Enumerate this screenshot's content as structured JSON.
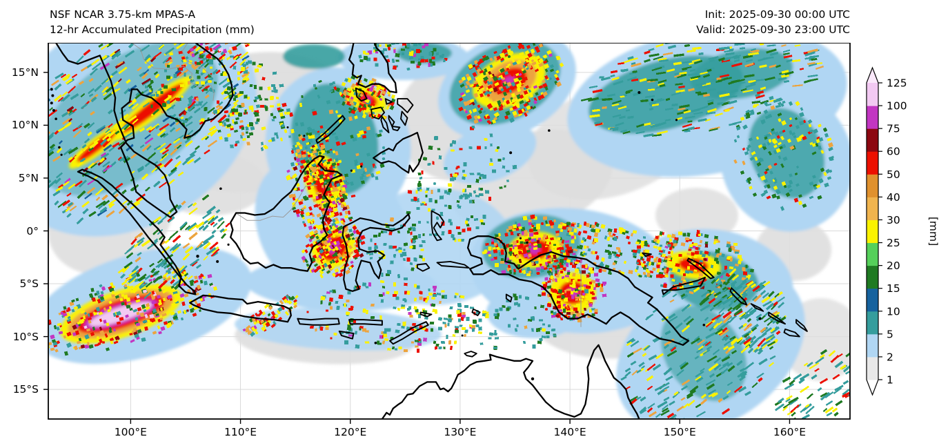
{
  "header": {
    "title_line1": "NSF NCAR 3.75-km MPAS-A",
    "title_line2": "12-hr Accumulated Precipitation (mm)",
    "init_label": "Init: 2025-09-30 00:00 UTC",
    "valid_label": "Valid: 2025-09-30 23:00 UTC"
  },
  "axes": {
    "x_ticks": [
      {
        "label": "100°E",
        "lon": 100
      },
      {
        "label": "110°E",
        "lon": 110
      },
      {
        "label": "120°E",
        "lon": 120
      },
      {
        "label": "130°E",
        "lon": 130
      },
      {
        "label": "140°E",
        "lon": 140
      },
      {
        "label": "150°E",
        "lon": 150
      },
      {
        "label": "160°E",
        "lon": 160
      }
    ],
    "y_ticks": [
      {
        "label": "15°N",
        "lat": 15
      },
      {
        "label": "10°N",
        "lat": 10
      },
      {
        "label": "5°N",
        "lat": 5
      },
      {
        "label": "0°",
        "lat": 0
      },
      {
        "label": "5°S",
        "lat": -5
      },
      {
        "label": "10°S",
        "lat": -10
      },
      {
        "label": "15°S",
        "lat": -15
      }
    ]
  },
  "colorbar": {
    "units_label": "[mm]",
    "levels": [
      1,
      2,
      5,
      10,
      15,
      20,
      25,
      30,
      40,
      50,
      60,
      75,
      100,
      125
    ],
    "segment_colors": [
      "#e8e8e8",
      "#b0d6f3",
      "#359d9d",
      "#16629e",
      "#1f7a22",
      "#55d05a",
      "#faf200",
      "#f0b44e",
      "#e0912e",
      "#ec1000",
      "#8c0710",
      "#c236c2",
      "#f2c9f2"
    ],
    "under_color": "#ffffff",
    "over_color": "#fbe9fb"
  },
  "palette": {
    "teal": "#359d9d",
    "green": "#1f7a22",
    "light_green": "#55d05a",
    "yellow": "#faf200",
    "orange": "#eca43f",
    "dark_orange": "#e0912e",
    "red": "#ec1000",
    "dark_red": "#8c0710",
    "magenta": "#c236c2",
    "pink": "#f2c9f2",
    "dark_blue": "#16629e",
    "light_blue": "#b0d6f3",
    "light_gray": "#dedede"
  },
  "map": {
    "coastline_color": "#000000",
    "admin_border_color": "#9a9a9a",
    "grid_color": "#d9d9d9",
    "background": "#ffffff"
  }
}
